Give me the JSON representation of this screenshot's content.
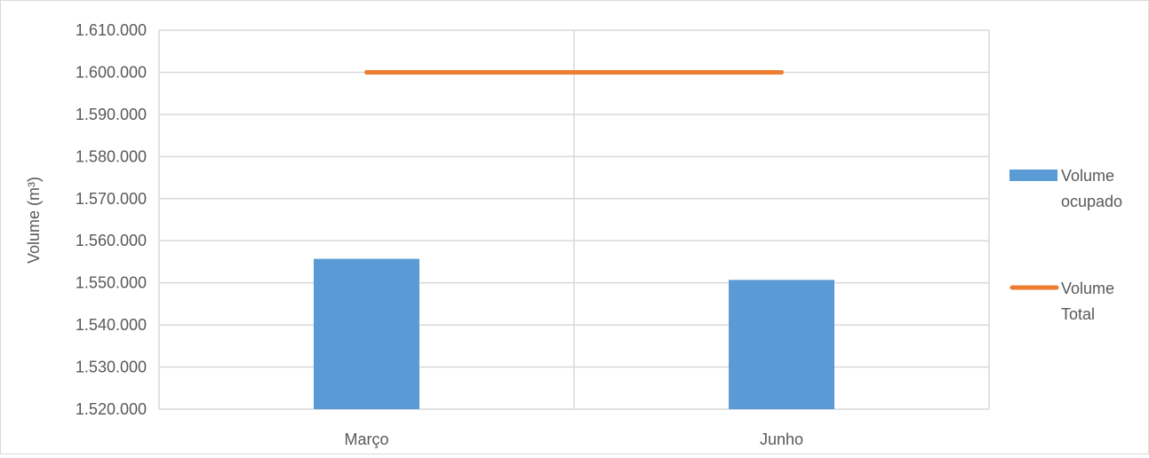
{
  "chart_data": {
    "type": "bar",
    "categories": [
      "Março",
      "Junho"
    ],
    "series": [
      {
        "name": "Volume ocupado",
        "kind": "bar",
        "color": "#5b9bd5",
        "values": [
          1555700,
          1550700
        ]
      },
      {
        "name": "Volume Total",
        "kind": "line",
        "color": "#ed7d31",
        "values": [
          1600000,
          1600000
        ]
      }
    ],
    "ylabel": "Volume (m³)",
    "ylim": [
      1520000,
      1610000
    ],
    "ytick_step": 10000,
    "ytick_labels": [
      "1.520.000",
      "1.530.000",
      "1.540.000",
      "1.550.000",
      "1.560.000",
      "1.570.000",
      "1.580.000",
      "1.590.000",
      "1.600.000",
      "1.610.000"
    ],
    "grid": true,
    "legend_position": "right",
    "legend_labels": [
      [
        "Volume",
        "ocupado"
      ],
      [
        "Volume",
        "Total"
      ]
    ],
    "gridline_color": "#d9d9d9"
  }
}
